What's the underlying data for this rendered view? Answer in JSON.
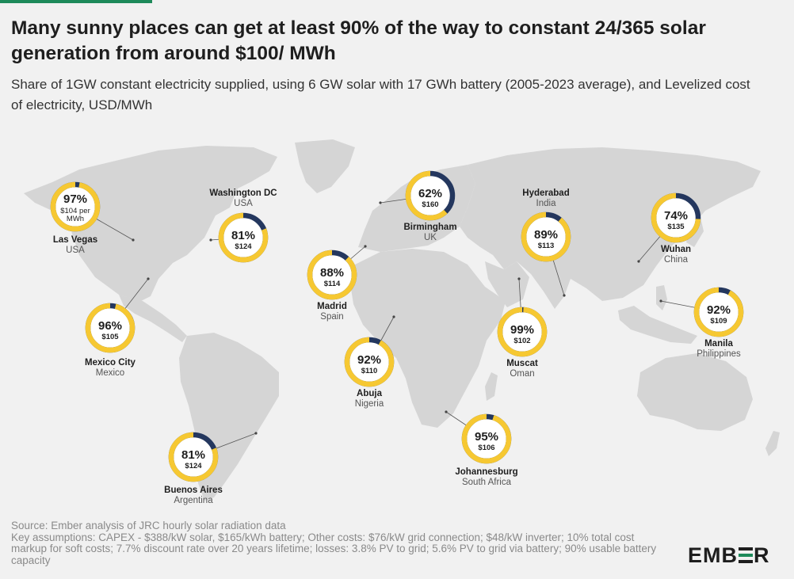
{
  "title": "Many sunny places can get at least 90% of the way to constant 24/365 solar generation from around $100/ MWh",
  "subtitle": "Share of 1GW constant electricity supplied, using 6 GW solar with 17 GWh battery (2005-2023 average), and Levelized cost of electricity, USD/MWh",
  "colors": {
    "share_ring": "#f6c832",
    "remainder_ring": "#24375e",
    "land": "#d5d5d5",
    "background": "#f1f1f1",
    "accent": "#1e8a5a"
  },
  "cities": [
    {
      "name": "Las Vegas",
      "country": "USA",
      "share_pct": 97,
      "share_label": "97%",
      "cost_label": "$104 per MWh"
    },
    {
      "name": "Washington DC",
      "country": "USA",
      "share_pct": 81,
      "share_label": "81%",
      "cost_label": "$124"
    },
    {
      "name": "Mexico City",
      "country": "Mexico",
      "share_pct": 96,
      "share_label": "96%",
      "cost_label": "$105"
    },
    {
      "name": "Buenos Aires",
      "country": "Argentina",
      "share_pct": 81,
      "share_label": "81%",
      "cost_label": "$124"
    },
    {
      "name": "Madrid",
      "country": "Spain",
      "share_pct": 88,
      "share_label": "88%",
      "cost_label": "$114"
    },
    {
      "name": "Birmingham",
      "country": "UK",
      "share_pct": 62,
      "share_label": "62%",
      "cost_label": "$160"
    },
    {
      "name": "Abuja",
      "country": "Nigeria",
      "share_pct": 92,
      "share_label": "92%",
      "cost_label": "$110"
    },
    {
      "name": "Johannesburg",
      "country": "South Africa",
      "share_pct": 95,
      "share_label": "95%",
      "cost_label": "$106"
    },
    {
      "name": "Muscat",
      "country": "Oman",
      "share_pct": 99,
      "share_label": "99%",
      "cost_label": "$102"
    },
    {
      "name": "Hyderabad",
      "country": "India",
      "share_pct": 89,
      "share_label": "89%",
      "cost_label": "$113"
    },
    {
      "name": "Wuhan",
      "country": "China",
      "share_pct": 74,
      "share_label": "74%",
      "cost_label": "$135"
    },
    {
      "name": "Manila",
      "country": "Philippines",
      "share_pct": 92,
      "share_label": "92%",
      "cost_label": "$109"
    }
  ],
  "footer": {
    "source": "Source: Ember analysis of JRC hourly solar radiation data",
    "assumptions": "Key assumptions: CAPEX - $388/kW solar, $165/kWh battery; Other costs: $76/kW grid connection; $48/kW inverter; 10% total cost markup for soft costs; 7.7% discount rate over 20 years lifetime; losses: 3.8% PV to grid; 5.6% PV to grid via battery; 90% usable battery capacity"
  },
  "logo": "EMBER"
}
